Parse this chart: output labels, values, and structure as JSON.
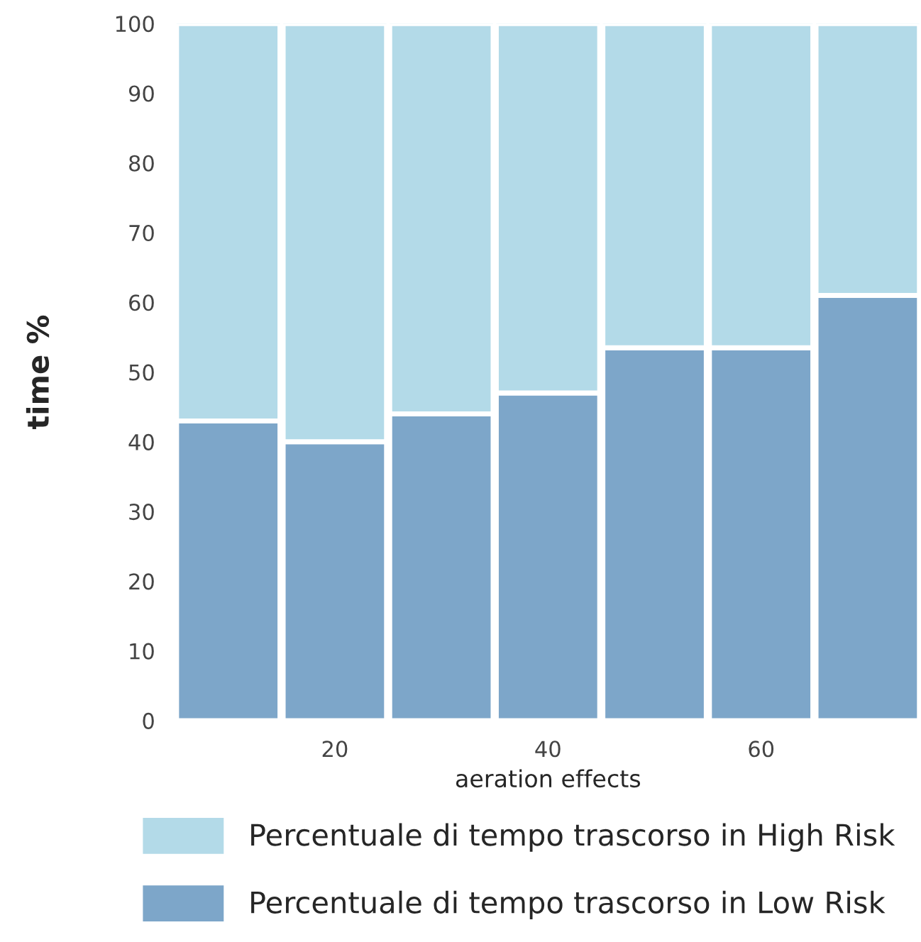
{
  "chart_data": {
    "type": "bar",
    "stacked": true,
    "xlabel": "aeration effects",
    "ylabel": "time %",
    "x": [
      10,
      20,
      30,
      40,
      50,
      60,
      70
    ],
    "series": [
      {
        "name": "Percentuale di tempo trascorso in Low Risk",
        "color": "#7da6c9",
        "values": [
          43,
          40,
          44,
          47,
          53.5,
          53.5,
          61
        ]
      },
      {
        "name": "Percentuale di tempo trascorso in High Risk",
        "color": "#b3dae8",
        "values": [
          57,
          60,
          56,
          53,
          46.5,
          46.5,
          39
        ]
      }
    ],
    "xlim": [
      5,
      75
    ],
    "xticks": [
      20,
      40,
      60
    ],
    "ylim": [
      0,
      100
    ],
    "yticks": [
      0,
      10,
      20,
      30,
      40,
      50,
      60,
      70,
      80,
      90,
      100
    ],
    "grid": false,
    "legend": "bottom"
  }
}
